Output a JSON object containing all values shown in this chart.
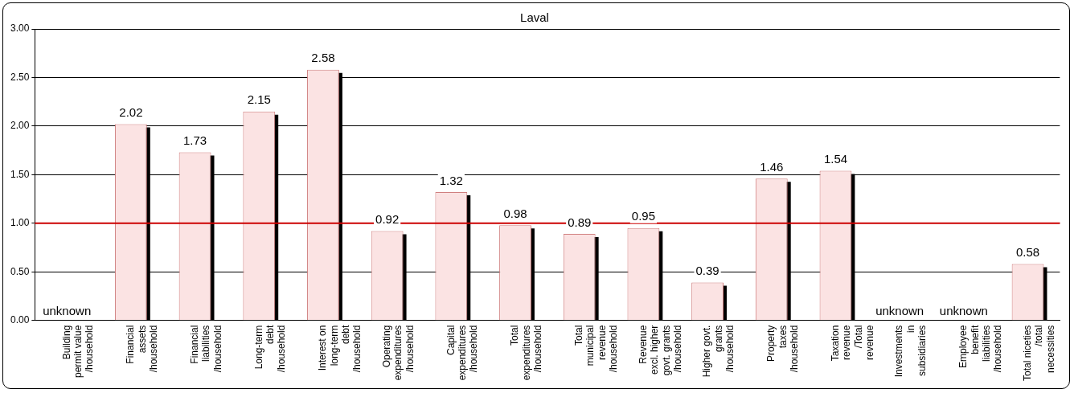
{
  "chart_data": {
    "type": "bar",
    "title": "Laval",
    "categories": [
      "Building\npermit value\n/household",
      "Financial\nassets\n/household",
      "Financial\nliabilities\n/household",
      "Long-term\ndebt\n/household",
      "Interest on\nlong-term\ndebt\n/household",
      "Operating\nexpenditures\n/household",
      "Capital\nexpenditures\n/household",
      "Total\nexpenditures\n/household",
      "Total\nmunicipal\nrevenue\n/household",
      "Revenue\nexcl. higher\ngovt. grants\n/household",
      "Higher govt.\ngrants\n/household",
      "Property\ntaxes\n/household",
      "Taxation\nrevenue\n/Total\nrevenue",
      "Investments\nin\nsubsidiaries",
      "Employee\nbenefit\nliabilities\n/household",
      "Total niceties\n/total\nnecessities"
    ],
    "values": [
      null,
      2.02,
      1.73,
      2.15,
      2.58,
      0.92,
      1.32,
      0.98,
      0.89,
      0.95,
      0.39,
      1.46,
      1.54,
      null,
      null,
      0.58
    ],
    "value_labels": [
      "unknown",
      "2.02",
      "1.73",
      "2.15",
      "2.58",
      "0.92",
      "1.32",
      "0.98",
      "0.89",
      "0.95",
      "0.39",
      "1.46",
      "1.54",
      "unknown",
      "unknown",
      "0.58"
    ],
    "color": "#fbe3e3",
    "ylim": [
      0,
      3
    ],
    "yticks": [
      {
        "value": 0,
        "label": "0.00"
      },
      {
        "value": 0.5,
        "label": "0.50"
      },
      {
        "value": 1,
        "label": "1.00"
      },
      {
        "value": 1.5,
        "label": "1.50"
      },
      {
        "value": 2,
        "label": "2.00"
      },
      {
        "value": 2.5,
        "label": "2.50"
      },
      {
        "value": 3,
        "label": "3.00"
      }
    ],
    "ref_lines": [
      {
        "axis": "y",
        "value": 1,
        "color": "#cc0000"
      }
    ],
    "grid": "y",
    "legend": false
  }
}
